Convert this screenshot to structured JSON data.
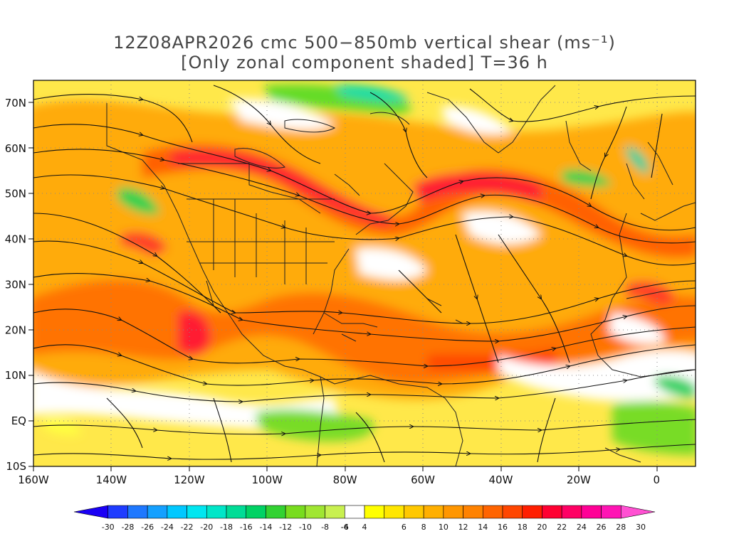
{
  "title": {
    "line1": "12Z08APR2026 cmc 500−850mb vertical shear (ms⁻¹)",
    "line2": "[Only zonal component shaded] T=36 h"
  },
  "map": {
    "lon_range": [
      -160,
      10
    ],
    "lat_range": [
      -10,
      75
    ],
    "lat_labels": [
      {
        "lat": 70,
        "text": "70N"
      },
      {
        "lat": 60,
        "text": "60N"
      },
      {
        "lat": 50,
        "text": "50N"
      },
      {
        "lat": 40,
        "text": "40N"
      },
      {
        "lat": 30,
        "text": "30N"
      },
      {
        "lat": 20,
        "text": "20N"
      },
      {
        "lat": 10,
        "text": "10N"
      },
      {
        "lat": 0,
        "text": "EQ"
      },
      {
        "lat": -10,
        "text": "10S"
      }
    ],
    "lon_labels": [
      {
        "lon": -160,
        "text": "160W"
      },
      {
        "lon": -140,
        "text": "140W"
      },
      {
        "lon": -120,
        "text": "120W"
      },
      {
        "lon": -100,
        "text": "100W"
      },
      {
        "lon": -80,
        "text": "80W"
      },
      {
        "lon": -60,
        "text": "60W"
      },
      {
        "lon": -40,
        "text": "40W"
      },
      {
        "lon": -20,
        "text": "20W"
      },
      {
        "lon": 0,
        "text": "0"
      }
    ]
  },
  "colorbar": {
    "labels": [
      "-30",
      "-28",
      "-26",
      "-24",
      "-22",
      "-20",
      "-18",
      "-16",
      "-14",
      "-12",
      "-10",
      "-8",
      "-6",
      "-4",
      "4",
      "6",
      "8",
      "10",
      "12",
      "14",
      "16",
      "18",
      "20",
      "22",
      "24",
      "26",
      "28",
      "30"
    ],
    "colors": [
      "#1a00f5",
      "#1e3cff",
      "#1e78ff",
      "#14a0ff",
      "#00c8ff",
      "#00e6f0",
      "#00e6c8",
      "#00dc96",
      "#00d264",
      "#32d232",
      "#78dc1e",
      "#a0e632",
      "#c8f050",
      "#ffffff",
      "#ffff00",
      "#ffe600",
      "#ffc800",
      "#ffaf00",
      "#ff9600",
      "#ff8200",
      "#ff6400",
      "#ff4600",
      "#ff1e00",
      "#ff0032",
      "#ff0064",
      "#ff0096",
      "#ff14b4",
      "#ff50d2"
    ]
  }
}
